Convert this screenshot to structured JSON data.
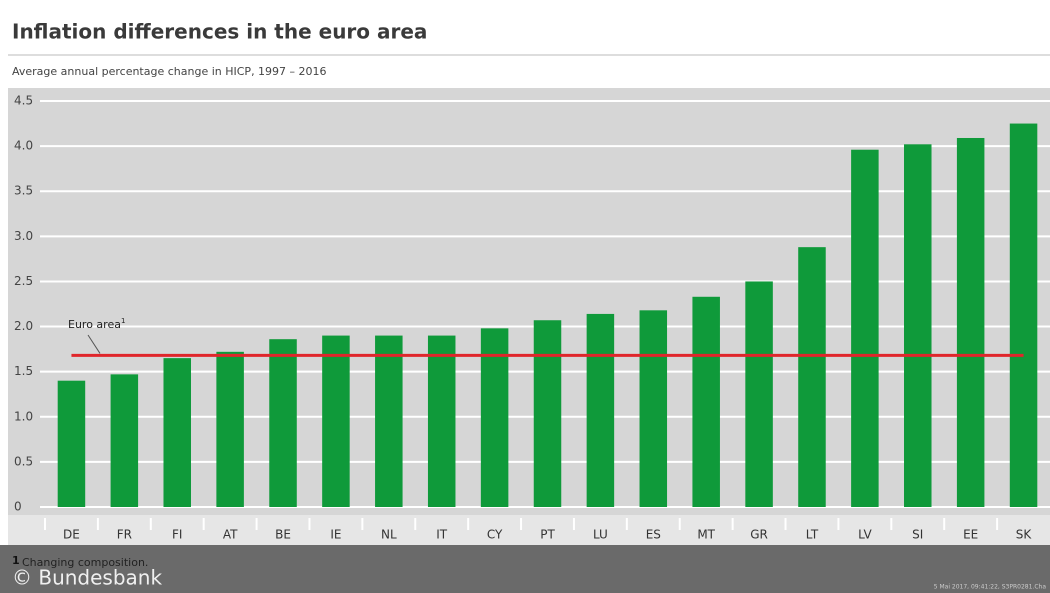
{
  "chart_data": {
    "type": "bar",
    "title": "Inflation differences in the euro area",
    "subtitle": "Average annual percentage change in HICP, 1997 – 2016",
    "categories": [
      "DE",
      "FR",
      "FI",
      "AT",
      "BE",
      "IE",
      "NL",
      "IT",
      "CY",
      "PT",
      "LU",
      "ES",
      "MT",
      "GR",
      "LT",
      "LV",
      "SI",
      "EE",
      "SK"
    ],
    "values": [
      1.4,
      1.47,
      1.65,
      1.72,
      1.86,
      1.9,
      1.9,
      1.9,
      1.98,
      2.07,
      2.14,
      2.18,
      2.33,
      2.5,
      2.88,
      3.96,
      4.02,
      4.09,
      4.25
    ],
    "color": "#0f9a3a",
    "ylim": [
      0,
      4.5
    ],
    "yticks": [
      0,
      0.5,
      {
        "value": 1,
        "label": "1.0"
      },
      1.5,
      {
        "value": 2,
        "label": "2.0"
      },
      2.5,
      {
        "value": 3,
        "label": "3.0"
      },
      3.5,
      {
        "value": 4,
        "label": "4.0"
      },
      4.5
    ],
    "grid": true,
    "reference_line": {
      "label": "Euro area",
      "footnote_mark": "1",
      "value": 1.68,
      "color": "#e0262b"
    },
    "footnote": {
      "mark": "1",
      "text": "Changing composition."
    },
    "watermark": "© Bundesbank",
    "stamp": "5 Mai 2017, 09:41:22, S3PR0281.Cha"
  }
}
